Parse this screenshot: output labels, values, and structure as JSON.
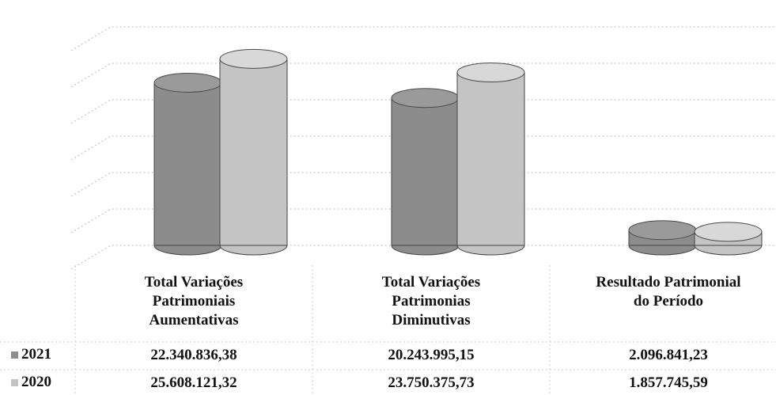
{
  "chart_data": {
    "type": "bar",
    "categories": [
      "Total Variações\nPatrimoniais\nAumentativas",
      "Total Variações\nPatrimonias\nDiminutivas",
      "Resultado Patrimonial\ndo Período"
    ],
    "series": [
      {
        "name": "2021",
        "color": "#8c8c8c",
        "values": [
          22340836.38,
          20243995.15,
          2096841.23
        ],
        "value_labels": [
          "22.340.836,38",
          "20.243.995,15",
          "2.096.841,23"
        ]
      },
      {
        "name": "2020",
        "color": "#c4c4c4",
        "values": [
          25608121.32,
          23750375.73,
          1857745.59
        ],
        "value_labels": [
          "25.608.121,32",
          "23.750.375,73",
          "1.857.745,59"
        ]
      }
    ],
    "ylim": [
      0,
      30000000
    ],
    "yticks": [
      0,
      5000000,
      10000000,
      15000000,
      20000000,
      25000000,
      30000000
    ],
    "grid": true
  }
}
